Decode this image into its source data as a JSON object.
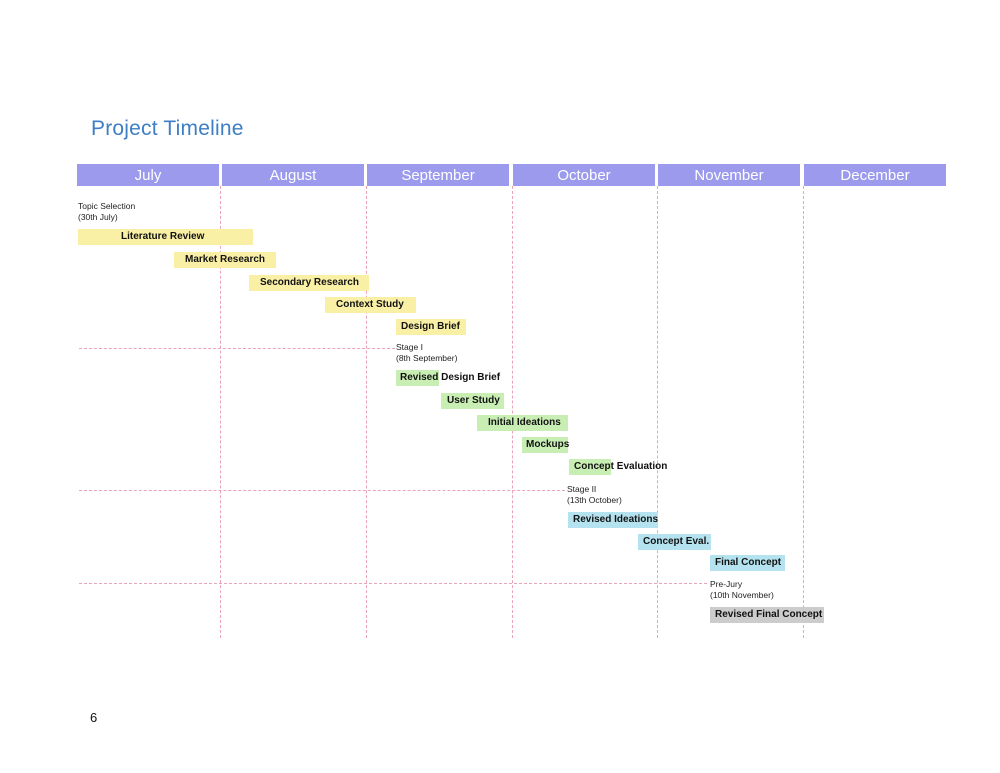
{
  "title": "Project Timeline",
  "months": [
    "July",
    "August",
    "September",
    "October",
    "November",
    "December"
  ],
  "milestones": [
    {
      "line1": "Topic Selection",
      "line2": "(30th July)"
    },
    {
      "line1": "Stage I",
      "line2": "(8th September)"
    },
    {
      "line1": "Stage II",
      "line2": "(13th October)"
    },
    {
      "line1": "Pre-Jury",
      "line2": "(10th November)"
    }
  ],
  "tasks": [
    {
      "label": "Literature Review",
      "color": "#faf0a5"
    },
    {
      "label": "Market Research",
      "color": "#faf0a5"
    },
    {
      "label": "Secondary Research",
      "color": "#faf0a5"
    },
    {
      "label": "Context Study",
      "color": "#faf0a5"
    },
    {
      "label": "Design Brief",
      "color": "#faf0a5"
    },
    {
      "label": "Revised Design Brief",
      "color": "#c9eeb4"
    },
    {
      "label": "User Study",
      "color": "#c9eeb4"
    },
    {
      "label": "Initial Ideations",
      "color": "#c9eeb4"
    },
    {
      "label": "Mockups",
      "color": "#c9eeb4"
    },
    {
      "label": "Concept Evaluation",
      "color": "#c9eeb4"
    },
    {
      "label": "Revised Ideations",
      "color": "#b4e3ef"
    },
    {
      "label": "Concept Eval.",
      "color": "#b4e3ef"
    },
    {
      "label": "Final Concept",
      "color": "#b4e3ef"
    },
    {
      "label": "Revised Final Concept",
      "color": "#cccccc"
    }
  ],
  "page_number": "6"
}
